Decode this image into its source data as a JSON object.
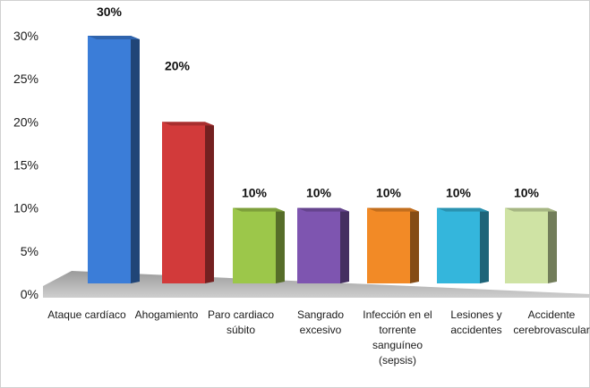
{
  "chart_data": {
    "type": "bar",
    "categories": [
      [
        "Ataque cardíaco"
      ],
      [
        "Ahogamiento"
      ],
      [
        "Paro cardiaco",
        "súbito"
      ],
      [
        "Sangrado",
        "excesivo"
      ],
      [
        "Infección en el",
        "torrente",
        "sanguíneo",
        "(sepsis)"
      ],
      [
        "Lesiones y",
        "accidentes"
      ],
      [
        "Accidente",
        "cerebrovascular"
      ]
    ],
    "values": [
      30,
      20,
      10,
      10,
      10,
      10,
      10
    ],
    "data_labels": [
      "30%",
      "20%",
      "10%",
      "10%",
      "10%",
      "10%",
      "10%"
    ],
    "y_ticks": [
      "0%",
      "5%",
      "10%",
      "15%",
      "20%",
      "25%",
      "30%"
    ],
    "ylim": [
      0,
      30
    ],
    "title": "",
    "xlabel": "",
    "ylabel": "",
    "grid": false,
    "legend": "none",
    "colors": [
      "#3b7dd8",
      "#d23a3a",
      "#9cc74a",
      "#7e55b0",
      "#f28a26",
      "#34b6dc",
      "#cfe3a4"
    ]
  }
}
